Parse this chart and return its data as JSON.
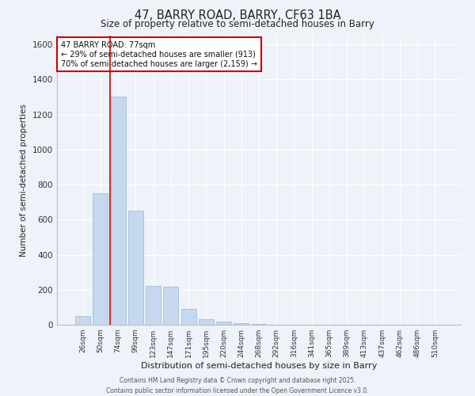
{
  "title1": "47, BARRY ROAD, BARRY, CF63 1BA",
  "title2": "Size of property relative to semi-detached houses in Barry",
  "xlabel": "Distribution of semi-detached houses by size in Barry",
  "ylabel": "Number of semi-detached properties",
  "bar_color": "#c5d8ed",
  "bar_edge_color": "#9ab8d8",
  "categories": [
    "26sqm",
    "50sqm",
    "74sqm",
    "99sqm",
    "123sqm",
    "147sqm",
    "171sqm",
    "195sqm",
    "220sqm",
    "244sqm",
    "268sqm",
    "292sqm",
    "316sqm",
    "341sqm",
    "365sqm",
    "389sqm",
    "413sqm",
    "437sqm",
    "462sqm",
    "486sqm",
    "510sqm"
  ],
  "values": [
    50,
    750,
    1300,
    650,
    220,
    215,
    90,
    30,
    20,
    10,
    4,
    2,
    1,
    1,
    0,
    0,
    0,
    0,
    0,
    0,
    0
  ],
  "ylim": [
    0,
    1650
  ],
  "yticks": [
    0,
    200,
    400,
    600,
    800,
    1000,
    1200,
    1400,
    1600
  ],
  "property_bin_index": 2,
  "annotation_title": "47 BARRY ROAD: 77sqm",
  "annotation_line1": "← 29% of semi-detached houses are smaller (913)",
  "annotation_line2": "70% of semi-detached houses are larger (2,159) →",
  "annotation_color": "#cc0000",
  "vline_color": "#cc0000",
  "background_color": "#eef2f9",
  "grid_color": "#ffffff",
  "footer1": "Contains HM Land Registry data © Crown copyright and database right 2025.",
  "footer2": "Contains public sector information licensed under the Open Government Licence v3.0."
}
